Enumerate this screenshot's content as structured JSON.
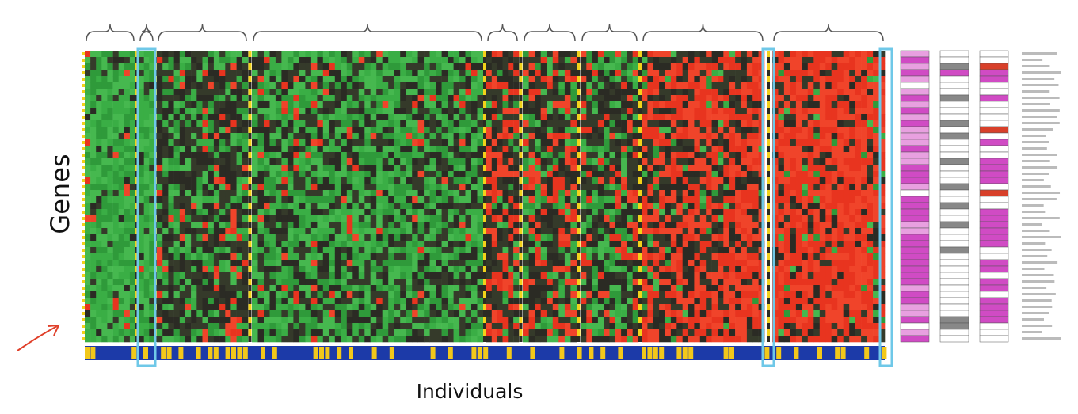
{
  "labels": {
    "y_axis": "Genes",
    "x_axis": "Individuals"
  }
}
